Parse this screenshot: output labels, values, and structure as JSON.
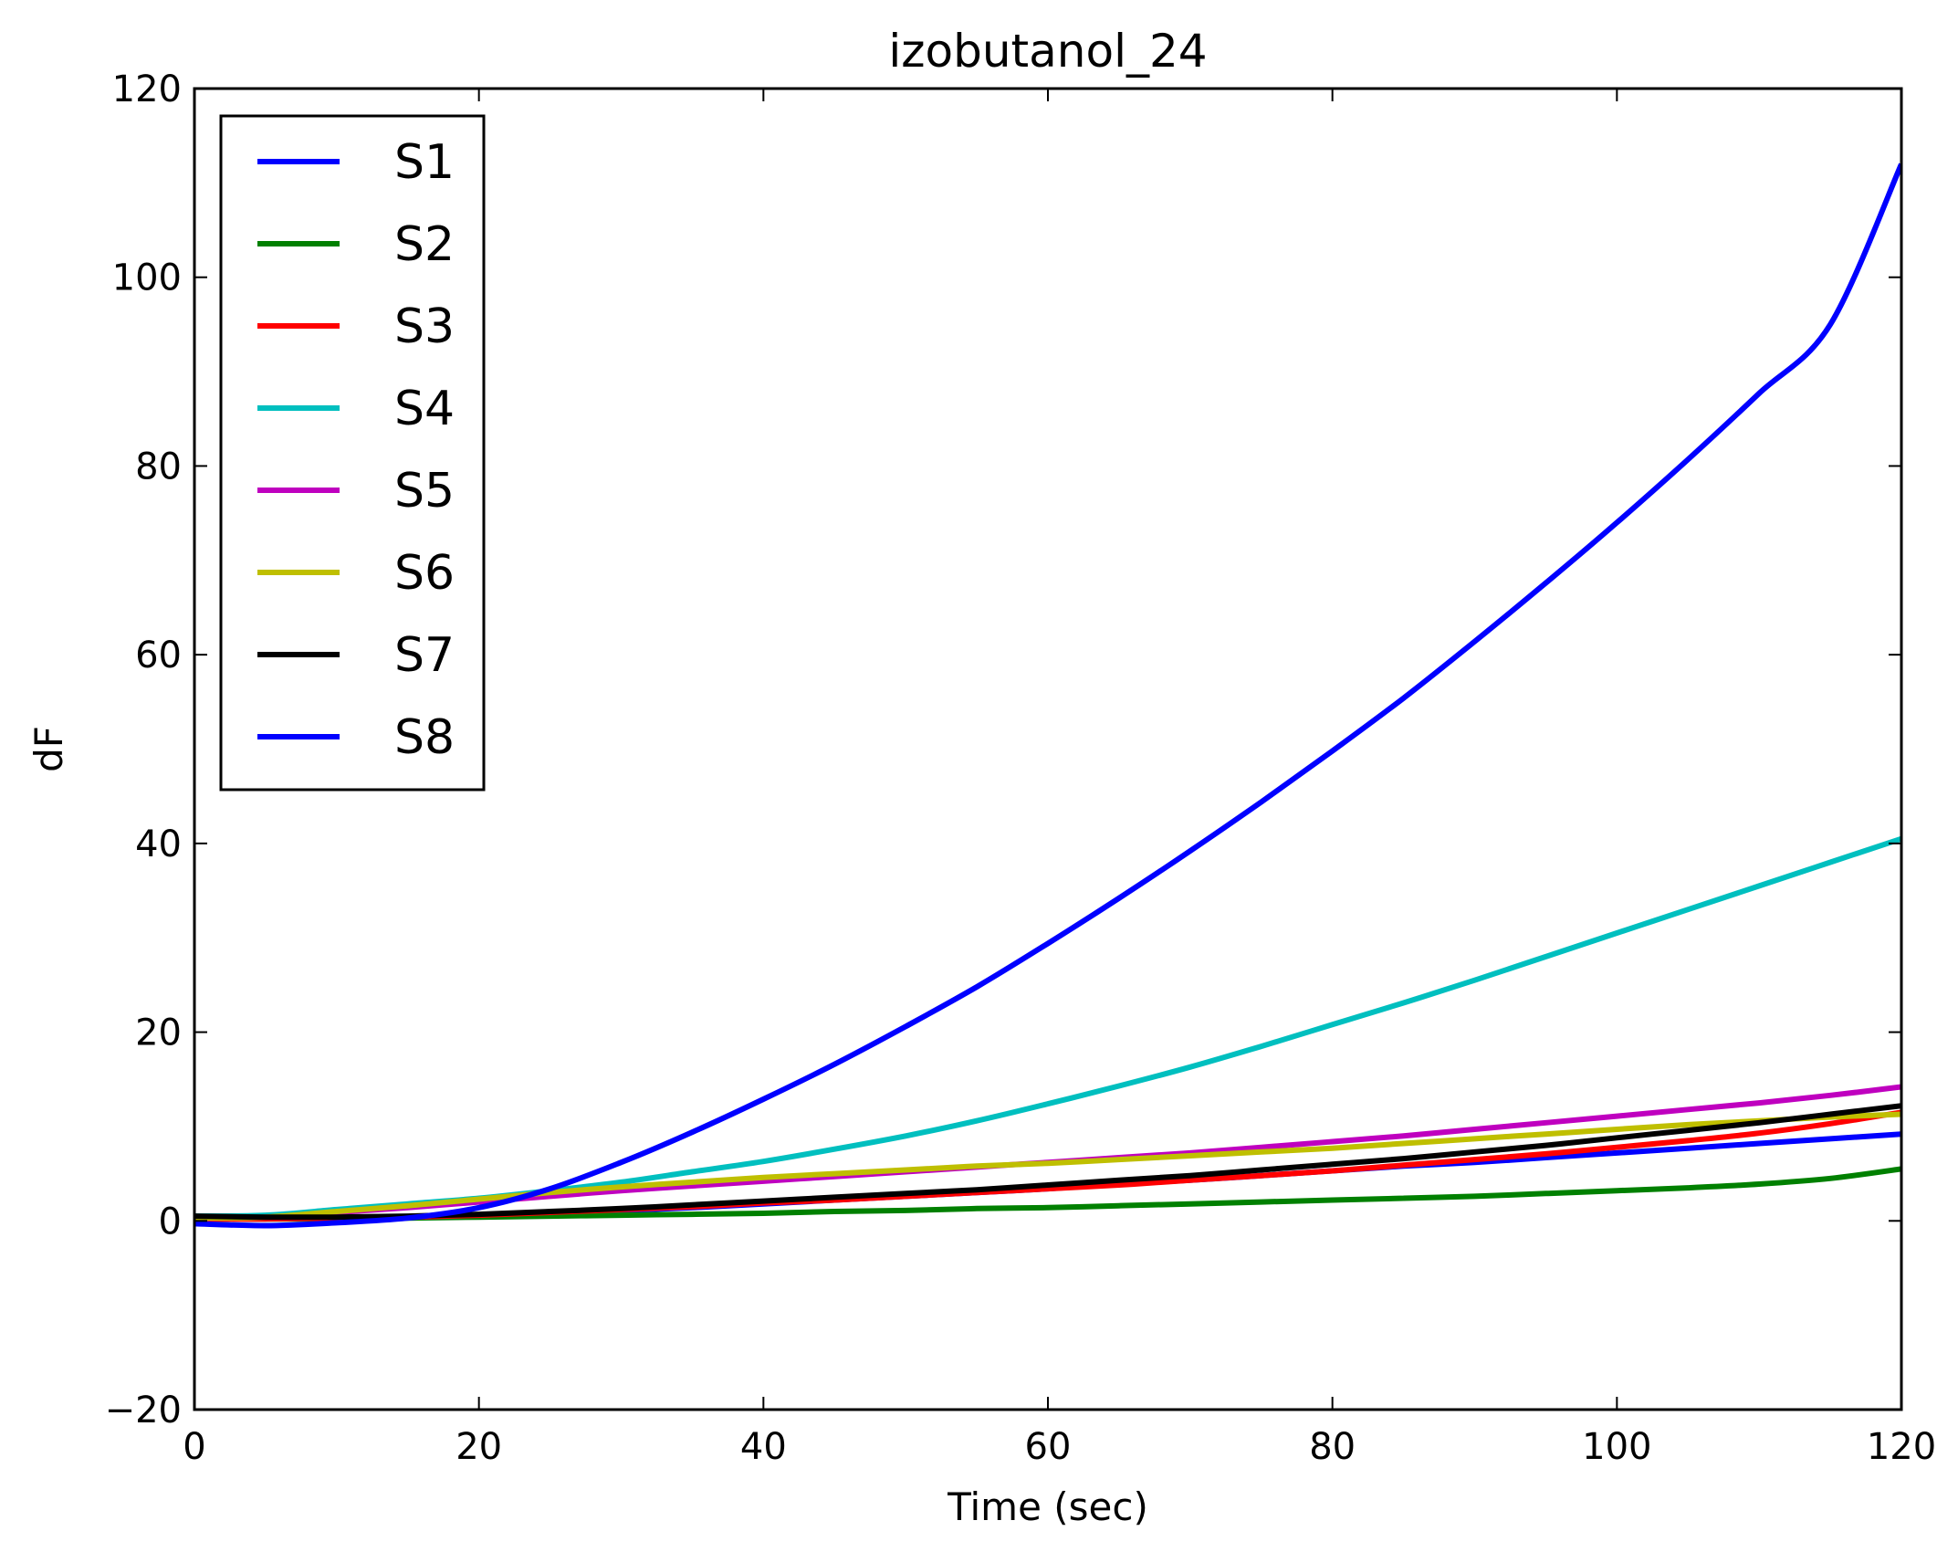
{
  "chart_data": {
    "type": "line",
    "title": "izobutanol_24",
    "xlabel": "Time (sec)",
    "ylabel": "dF",
    "xlim": [
      0,
      120
    ],
    "ylim": [
      -20,
      120
    ],
    "xticks": [
      0,
      20,
      40,
      60,
      80,
      100,
      120
    ],
    "yticks": [
      -20,
      0,
      20,
      40,
      60,
      80,
      100,
      120
    ],
    "xtick_labels": [
      "0",
      "20",
      "40",
      "60",
      "80",
      "100",
      "120"
    ],
    "ytick_labels": [
      "−20",
      "0",
      "20",
      "40",
      "60",
      "80",
      "100",
      "120"
    ],
    "grid": false,
    "legend_position": "top-left",
    "x": [
      0,
      5,
      10,
      15,
      20,
      25,
      30,
      35,
      40,
      45,
      50,
      55,
      60,
      65,
      70,
      75,
      80,
      85,
      90,
      95,
      100,
      105,
      110,
      115,
      120
    ],
    "series": [
      {
        "name": "S1",
        "color": "#0000ff",
        "values": [
          0.3,
          0.3,
          0.3,
          0.4,
          0.6,
          0.8,
          1.1,
          1.4,
          1.8,
          2.2,
          2.6,
          3.0,
          3.4,
          3.9,
          4.3,
          4.8,
          5.3,
          5.8,
          6.2,
          6.7,
          7.2,
          7.7,
          8.2,
          8.7,
          9.2
        ]
      },
      {
        "name": "S2",
        "color": "#008000",
        "values": [
          0.2,
          0.2,
          0.2,
          0.3,
          0.4,
          0.5,
          0.6,
          0.7,
          0.8,
          1.0,
          1.1,
          1.3,
          1.4,
          1.6,
          1.8,
          2.0,
          2.2,
          2.4,
          2.6,
          2.9,
          3.2,
          3.5,
          3.9,
          4.5,
          5.5
        ]
      },
      {
        "name": "S3",
        "color": "#ff0000",
        "values": [
          0.2,
          0.2,
          0.3,
          0.4,
          0.6,
          0.9,
          1.2,
          1.5,
          1.9,
          2.2,
          2.6,
          3.0,
          3.4,
          3.8,
          4.3,
          4.8,
          5.3,
          5.9,
          6.5,
          7.1,
          7.8,
          8.5,
          9.3,
          10.3,
          11.5
        ]
      },
      {
        "name": "S4",
        "color": "#00bfbf",
        "values": [
          0.5,
          0.6,
          1.2,
          1.8,
          2.4,
          3.2,
          4.1,
          5.2,
          6.3,
          7.6,
          9.0,
          10.6,
          12.4,
          14.3,
          16.3,
          18.5,
          20.8,
          23.1,
          25.5,
          28.0,
          30.5,
          33.0,
          35.5,
          38.0,
          40.5
        ]
      },
      {
        "name": "S5",
        "color": "#bf00bf",
        "values": [
          0.3,
          0.4,
          0.9,
          1.4,
          2.0,
          2.6,
          3.2,
          3.7,
          4.2,
          4.7,
          5.2,
          5.7,
          6.2,
          6.7,
          7.2,
          7.8,
          8.4,
          9.0,
          9.7,
          10.4,
          11.1,
          11.8,
          12.5,
          13.3,
          14.2
        ]
      },
      {
        "name": "S6",
        "color": "#bfbf00",
        "values": [
          0.3,
          0.4,
          1.0,
          1.6,
          2.3,
          3.0,
          3.6,
          4.1,
          4.6,
          5.0,
          5.4,
          5.8,
          6.1,
          6.5,
          6.9,
          7.3,
          7.7,
          8.2,
          8.7,
          9.2,
          9.7,
          10.2,
          10.6,
          11.0,
          11.3
        ]
      },
      {
        "name": "S7",
        "color": "#000000",
        "values": [
          0.5,
          0.4,
          0.4,
          0.5,
          0.7,
          1.0,
          1.3,
          1.7,
          2.1,
          2.5,
          2.9,
          3.3,
          3.8,
          4.3,
          4.8,
          5.4,
          6.0,
          6.6,
          7.3,
          8.0,
          8.8,
          9.6,
          10.4,
          11.3,
          12.2
        ]
      },
      {
        "name": "S8",
        "color": "#0000ff",
        "values": [
          -0.3,
          -0.5,
          -0.2,
          0.3,
          1.4,
          3.4,
          6.2,
          9.4,
          12.9,
          16.6,
          20.6,
          24.8,
          29.4,
          34.2,
          39.2,
          44.4,
          49.8,
          55.4,
          61.4,
          67.6,
          74.0,
          80.7,
          87.7,
          95.0,
          112.0
        ]
      }
    ]
  }
}
